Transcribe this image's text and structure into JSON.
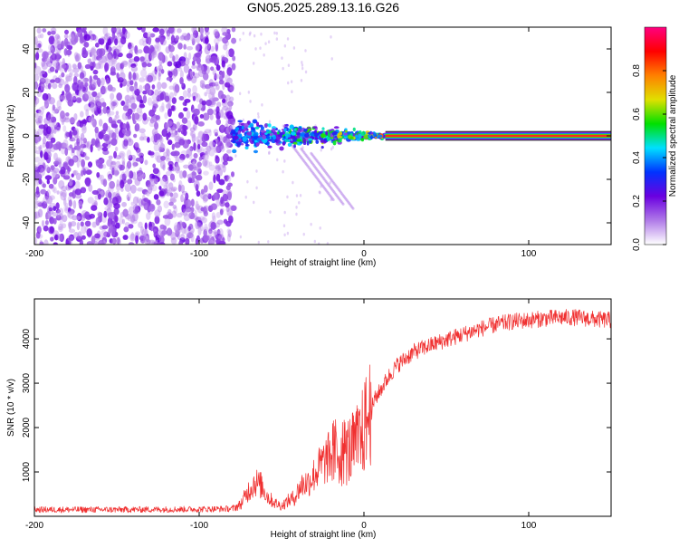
{
  "title": "GN05.2025.289.13.16.G26",
  "chart_data": [
    {
      "type": "heatmap",
      "name": "spectrogram",
      "xlabel": "Height of straight line (km)",
      "ylabel": "Frequency (Hz)",
      "xlim": [
        -200,
        150
      ],
      "ylim": [
        -50,
        50
      ],
      "xticks": [
        -200,
        -100,
        0,
        100
      ],
      "yticks": [
        -40,
        -20,
        0,
        20,
        40
      ],
      "noise_region_x": [
        -200,
        -79
      ],
      "signal_line": {
        "x_start": 13,
        "x_end": 150,
        "frequency": 0,
        "half_width": 2
      },
      "colorbar": {
        "label": "Normalized spectral amplitude",
        "range": [
          0,
          1
        ],
        "ticks": [
          0.0,
          0.2,
          0.4,
          0.6,
          0.8
        ],
        "tick_labels": [
          "0.0",
          "0.2",
          "0.4",
          "0.6",
          "0.8"
        ],
        "colors": [
          "#ffffff",
          "#b07ae8",
          "#6a00e0",
          "#0033ff",
          "#00e0ff",
          "#00e000",
          "#e0e000",
          "#ff8000",
          "#ff0000",
          "#ff0080"
        ]
      }
    },
    {
      "type": "line",
      "name": "snr",
      "xlabel": "Height of straight line (km)",
      "ylabel": "SNR (10 * v/v)",
      "xlim": [
        -200,
        150
      ],
      "ylim": [
        0,
        4900
      ],
      "xticks": [
        -200,
        -100,
        0,
        100
      ],
      "yticks": [
        1000,
        2000,
        3000,
        4000
      ],
      "color": "#f03030",
      "series": [
        {
          "name": "SNR",
          "x": [
            -200,
            -150,
            -100,
            -80,
            -75,
            -70,
            -66,
            -62,
            -58,
            -54,
            -50,
            -46,
            -42,
            -38,
            -34,
            -30,
            -26,
            -22,
            -18,
            -14,
            -10,
            -6,
            -2,
            2,
            6,
            10,
            15,
            20,
            25,
            30,
            35,
            40,
            50,
            60,
            70,
            80,
            90,
            100,
            110,
            120,
            130,
            140,
            150
          ],
          "values": [
            150,
            150,
            160,
            170,
            260,
            580,
            780,
            680,
            420,
            300,
            230,
            350,
            430,
            700,
            760,
            950,
            1150,
            1300,
            1450,
            1450,
            1480,
            1550,
            1750,
            2200,
            2600,
            2850,
            3150,
            3400,
            3550,
            3700,
            3780,
            3850,
            3980,
            4100,
            4220,
            4320,
            4390,
            4420,
            4460,
            4480,
            4480,
            4440,
            4420
          ]
        }
      ]
    }
  ]
}
